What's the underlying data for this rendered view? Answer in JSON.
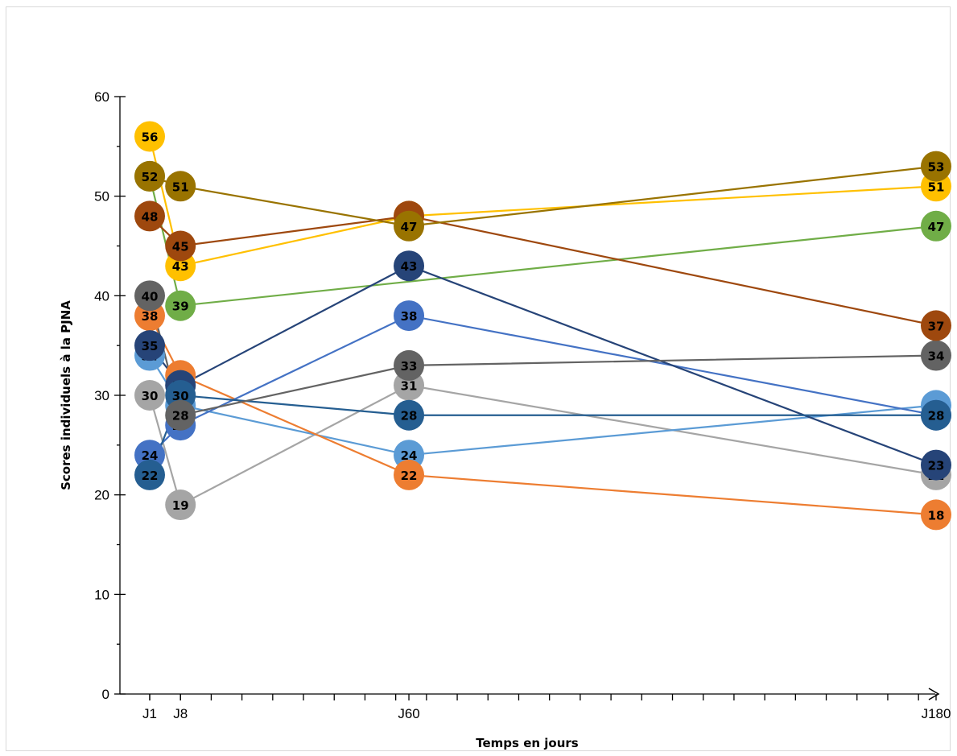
{
  "chart_data": {
    "type": "line",
    "title": "",
    "xlabel": "Temps en jours",
    "ylabel": "Scores individuels  à la PJNA",
    "x_domain": [
      1,
      180
    ],
    "ylim": [
      0,
      60
    ],
    "y_ticks": [
      0,
      10,
      20,
      30,
      40,
      50,
      60
    ],
    "x_ticks": [
      {
        "day": 1,
        "label": "J1"
      },
      {
        "day": 8,
        "label": "J8"
      },
      {
        "day": 60,
        "label": "J60"
      },
      {
        "day": 180,
        "label": "J180"
      }
    ],
    "x_minor_tick_step": 7,
    "grid": false,
    "legend": "none",
    "data_labels": true,
    "series": [
      {
        "color": "#ffc000",
        "points": [
          [
            1,
            56
          ],
          [
            8,
            43
          ],
          [
            60,
            48
          ],
          [
            180,
            51
          ]
        ]
      },
      {
        "color": "#70ad47",
        "points": [
          [
            1,
            52
          ],
          [
            8,
            39
          ],
          [
            180,
            47
          ]
        ]
      },
      {
        "color": "#a5a5a5",
        "points": [
          [
            1,
            30
          ],
          [
            8,
            19
          ],
          [
            60,
            31
          ],
          [
            180,
            22
          ]
        ]
      },
      {
        "color": "#5b9bd5",
        "points": [
          [
            1,
            34
          ],
          [
            8,
            29
          ],
          [
            60,
            24
          ],
          [
            180,
            29
          ]
        ]
      },
      {
        "color": "#ed7d31",
        "points": [
          [
            1,
            38
          ],
          [
            8,
            32
          ],
          [
            60,
            22
          ],
          [
            180,
            18
          ]
        ]
      },
      {
        "color": "#4472c4",
        "points": [
          [
            1,
            24
          ],
          [
            8,
            27
          ],
          [
            60,
            38
          ],
          [
            180,
            28
          ]
        ]
      },
      {
        "color": "#264478",
        "points": [
          [
            1,
            35
          ],
          [
            8,
            31
          ],
          [
            60,
            43
          ],
          [
            180,
            23
          ]
        ]
      },
      {
        "color": "#255e91",
        "points": [
          [
            1,
            22
          ],
          [
            8,
            30
          ],
          [
            60,
            28
          ],
          [
            180,
            28
          ]
        ]
      },
      {
        "color": "#636363",
        "points": [
          [
            1,
            40
          ],
          [
            8,
            28
          ],
          [
            60,
            33
          ],
          [
            180,
            34
          ]
        ]
      },
      {
        "color": "#9e480e",
        "points": [
          [
            1,
            48
          ],
          [
            8,
            45
          ],
          [
            60,
            48
          ],
          [
            180,
            37
          ]
        ]
      },
      {
        "color": "#997300",
        "points": [
          [
            1,
            52
          ],
          [
            8,
            51
          ],
          [
            60,
            47
          ],
          [
            180,
            53
          ]
        ]
      }
    ]
  }
}
